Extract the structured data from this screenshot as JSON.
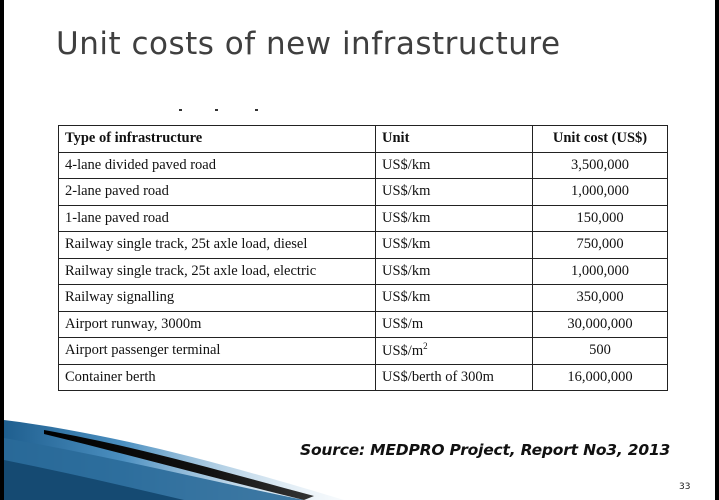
{
  "slide": {
    "title": "Unit costs of new infrastructure",
    "source": "Source: MEDPRO Project, Report No3, 2013",
    "page_number": "33"
  },
  "table": {
    "headers": [
      "Type of infrastructure",
      "Unit",
      "Unit cost (US$)"
    ],
    "rows": [
      {
        "type": "4-lane divided paved road",
        "unit": "US$/km",
        "cost": "3,500,000"
      },
      {
        "type": "2-lane paved road",
        "unit": "US$/km",
        "cost": "1,000,000"
      },
      {
        "type": "1-lane paved road",
        "unit": "US$/km",
        "cost": "150,000"
      },
      {
        "type": "Railway single track, 25t axle load, diesel",
        "unit": "US$/km",
        "cost": "750,000"
      },
      {
        "type": "Railway single track, 25t axle load, electric",
        "unit": "US$/km",
        "cost": "1,000,000"
      },
      {
        "type": "Railway signalling",
        "unit": "US$/km",
        "cost": "350,000"
      },
      {
        "type": "Airport runway, 3000m",
        "unit": "US$/m",
        "cost": "30,000,000"
      },
      {
        "type": "Airport passenger terminal",
        "unit": "US$/m",
        "unit_superscript": "2",
        "cost": "500"
      },
      {
        "type": "Container berth",
        "unit": "US$/berth of 300m",
        "cost": "16,000,000"
      }
    ]
  },
  "colors": {
    "background": "#ffffff",
    "frame": "#000000",
    "title": "#3f3f3f",
    "swoosh_blue": "#2e6f9e",
    "swoosh_light": "#9ec3dd"
  }
}
